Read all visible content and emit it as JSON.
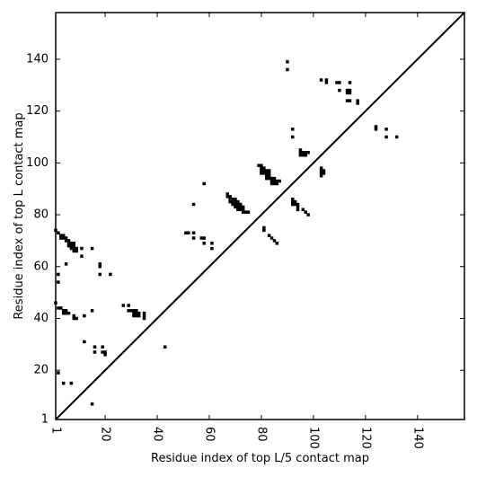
{
  "chart_data": {
    "type": "scatter",
    "title": "",
    "xlabel": "Residue index of top L/5 contact map",
    "ylabel": "Residue index of top L contact map",
    "xlim": [
      1,
      158
    ],
    "ylim": [
      1,
      158
    ],
    "x_ticks": [
      1,
      20,
      40,
      60,
      80,
      100,
      120,
      140
    ],
    "y_ticks": [
      1,
      20,
      40,
      60,
      80,
      100,
      120,
      140
    ],
    "x_tick_labels_rotated": true,
    "grid": false,
    "legend": "none",
    "diagonal_line": true,
    "marker": "square",
    "marker_color": "#000000",
    "points": [
      [
        1,
        74
      ],
      [
        2,
        73
      ],
      [
        3,
        72
      ],
      [
        4,
        72
      ],
      [
        3,
        71
      ],
      [
        4,
        71
      ],
      [
        5,
        71
      ],
      [
        5,
        70
      ],
      [
        6,
        70
      ],
      [
        6,
        69
      ],
      [
        7,
        69
      ],
      [
        8,
        69
      ],
      [
        6,
        68
      ],
      [
        7,
        68
      ],
      [
        8,
        68
      ],
      [
        7,
        67
      ],
      [
        8,
        67
      ],
      [
        9,
        67
      ],
      [
        8,
        66
      ],
      [
        9,
        66
      ],
      [
        5,
        61
      ],
      [
        2,
        57
      ],
      [
        2,
        54
      ],
      [
        1,
        46
      ],
      [
        2,
        44
      ],
      [
        3,
        44
      ],
      [
        4,
        43
      ],
      [
        5,
        43
      ],
      [
        4,
        42
      ],
      [
        5,
        42
      ],
      [
        6,
        42
      ],
      [
        8,
        41
      ],
      [
        9,
        40
      ],
      [
        8,
        40
      ],
      [
        11,
        67
      ],
      [
        11,
        64
      ],
      [
        15,
        67
      ],
      [
        18,
        61
      ],
      [
        18,
        60
      ],
      [
        18,
        57
      ],
      [
        22,
        57
      ],
      [
        12,
        41
      ],
      [
        15,
        43
      ],
      [
        12,
        31
      ],
      [
        16,
        29
      ],
      [
        19,
        29
      ],
      [
        16,
        27
      ],
      [
        19,
        27
      ],
      [
        20,
        27
      ],
      [
        20,
        26
      ],
      [
        2,
        19
      ],
      [
        4,
        15
      ],
      [
        7,
        15
      ],
      [
        15,
        7
      ],
      [
        27,
        45
      ],
      [
        29,
        45
      ],
      [
        29,
        43
      ],
      [
        30,
        43
      ],
      [
        31,
        43
      ],
      [
        32,
        43
      ],
      [
        31,
        42
      ],
      [
        32,
        42
      ],
      [
        33,
        42
      ],
      [
        35,
        42
      ],
      [
        31,
        41
      ],
      [
        32,
        41
      ],
      [
        33,
        41
      ],
      [
        35,
        41
      ],
      [
        35,
        40
      ],
      [
        43,
        29
      ],
      [
        51,
        73
      ],
      [
        52,
        73
      ],
      [
        54,
        73
      ],
      [
        54,
        71
      ],
      [
        57,
        71
      ],
      [
        58,
        71
      ],
      [
        58,
        69
      ],
      [
        61,
        69
      ],
      [
        61,
        67
      ],
      [
        54,
        84
      ],
      [
        58,
        92
      ],
      [
        67,
        88
      ],
      [
        67,
        87
      ],
      [
        68,
        87
      ],
      [
        68,
        86
      ],
      [
        69,
        86
      ],
      [
        70,
        86
      ],
      [
        68,
        85
      ],
      [
        69,
        85
      ],
      [
        70,
        85
      ],
      [
        71,
        85
      ],
      [
        69,
        84
      ],
      [
        70,
        84
      ],
      [
        71,
        84
      ],
      [
        72,
        84
      ],
      [
        70,
        83
      ],
      [
        71,
        83
      ],
      [
        72,
        83
      ],
      [
        73,
        83
      ],
      [
        71,
        82
      ],
      [
        72,
        82
      ],
      [
        73,
        82
      ],
      [
        73,
        81
      ],
      [
        74,
        81
      ],
      [
        75,
        81
      ],
      [
        79,
        99
      ],
      [
        80,
        99
      ],
      [
        80,
        98
      ],
      [
        81,
        98
      ],
      [
        80,
        97
      ],
      [
        81,
        97
      ],
      [
        82,
        97
      ],
      [
        83,
        97
      ],
      [
        80,
        96
      ],
      [
        81,
        96
      ],
      [
        82,
        96
      ],
      [
        83,
        96
      ],
      [
        82,
        95
      ],
      [
        83,
        95
      ],
      [
        82,
        94
      ],
      [
        83,
        94
      ],
      [
        84,
        94
      ],
      [
        85,
        94
      ],
      [
        84,
        93
      ],
      [
        85,
        93
      ],
      [
        86,
        93
      ],
      [
        87,
        93
      ],
      [
        84,
        92
      ],
      [
        85,
        92
      ],
      [
        86,
        92
      ],
      [
        81,
        75
      ],
      [
        81,
        74
      ],
      [
        83,
        72
      ],
      [
        84,
        71
      ],
      [
        85,
        70
      ],
      [
        86,
        69
      ],
      [
        92,
        86
      ],
      [
        92,
        85
      ],
      [
        93,
        85
      ],
      [
        92,
        84
      ],
      [
        93,
        84
      ],
      [
        94,
        84
      ],
      [
        94,
        83
      ],
      [
        94,
        82
      ],
      [
        96,
        82
      ],
      [
        97,
        81
      ],
      [
        98,
        80
      ],
      [
        95,
        105
      ],
      [
        95,
        104
      ],
      [
        96,
        104
      ],
      [
        97,
        104
      ],
      [
        95,
        103
      ],
      [
        96,
        103
      ],
      [
        97,
        103
      ],
      [
        98,
        104
      ],
      [
        103,
        98
      ],
      [
        103,
        97
      ],
      [
        104,
        97
      ],
      [
        103,
        96
      ],
      [
        104,
        96
      ],
      [
        103,
        95
      ],
      [
        90,
        139
      ],
      [
        90,
        136
      ],
      [
        92,
        113
      ],
      [
        92,
        110
      ],
      [
        103,
        132
      ],
      [
        105,
        132
      ],
      [
        105,
        131
      ],
      [
        109,
        131
      ],
      [
        110,
        131
      ],
      [
        114,
        131
      ],
      [
        110,
        128
      ],
      [
        113,
        128
      ],
      [
        114,
        128
      ],
      [
        113,
        127
      ],
      [
        114,
        127
      ],
      [
        114,
        124
      ],
      [
        113,
        124
      ],
      [
        117,
        124
      ],
      [
        117,
        123
      ],
      [
        124,
        114
      ],
      [
        124,
        113
      ],
      [
        128,
        113
      ],
      [
        128,
        110
      ],
      [
        132,
        110
      ]
    ]
  }
}
